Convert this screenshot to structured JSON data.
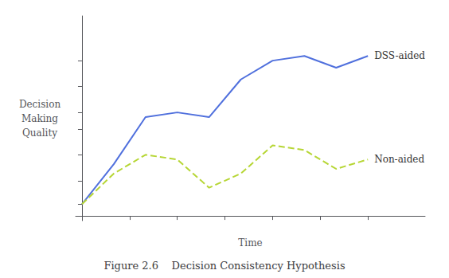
{
  "chart_data": {
    "type": "line",
    "title": "Figure 2.6    Decision Consistency Hypothesis",
    "xlabel": "Time",
    "ylabel": "Decision\nMaking\nQuality",
    "x": [
      0,
      1,
      2,
      3,
      4,
      5,
      6,
      7,
      8,
      9
    ],
    "series": [
      {
        "name": "DSS-aided",
        "line_style": "solid",
        "values": [
          0.05,
          0.22,
          0.42,
          0.44,
          0.42,
          0.58,
          0.66,
          0.68,
          0.63,
          0.68
        ]
      },
      {
        "name": "Non-aided",
        "line_style": "dashed",
        "values": [
          0.05,
          0.18,
          0.26,
          0.24,
          0.12,
          0.18,
          0.3,
          0.28,
          0.2,
          0.24
        ]
      }
    ],
    "xlim": [
      -0.2,
      10.8
    ],
    "xticks": [
      0,
      1.5,
      3,
      4.5,
      6,
      7.5,
      9
    ],
    "ylim": [
      -0.02,
      0.85
    ],
    "yticks": [
      0.05,
      0.15,
      0.26,
      0.37,
      0.44,
      0.55,
      0.66
    ],
    "tick_labels": false,
    "grid": false
  }
}
